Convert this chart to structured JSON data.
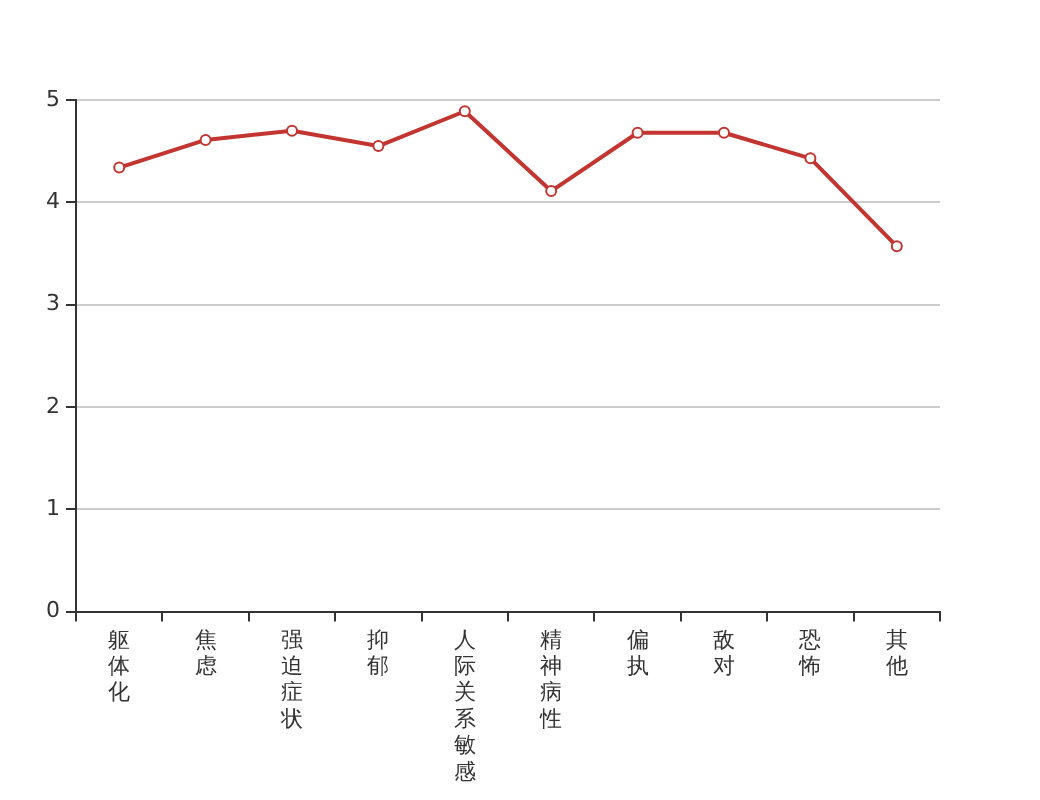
{
  "chart_data": {
    "type": "line",
    "categories": [
      "躯体化",
      "焦虑",
      "强迫症状",
      "抑郁",
      "人际关系敏感",
      "精神病性",
      "偏执",
      "敌对",
      "恐怖",
      "其他"
    ],
    "series": [
      {
        "color": "#c23531",
        "values": [
          4.34,
          4.61,
          4.7,
          4.55,
          4.89,
          4.11,
          4.68,
          4.68,
          4.43,
          3.57
        ]
      }
    ],
    "ylim": [
      0,
      5
    ],
    "yticks": [
      0,
      1,
      2,
      3,
      4,
      5
    ],
    "grid": "y",
    "legend": false,
    "marker": "circle",
    "line_style": "solid"
  }
}
